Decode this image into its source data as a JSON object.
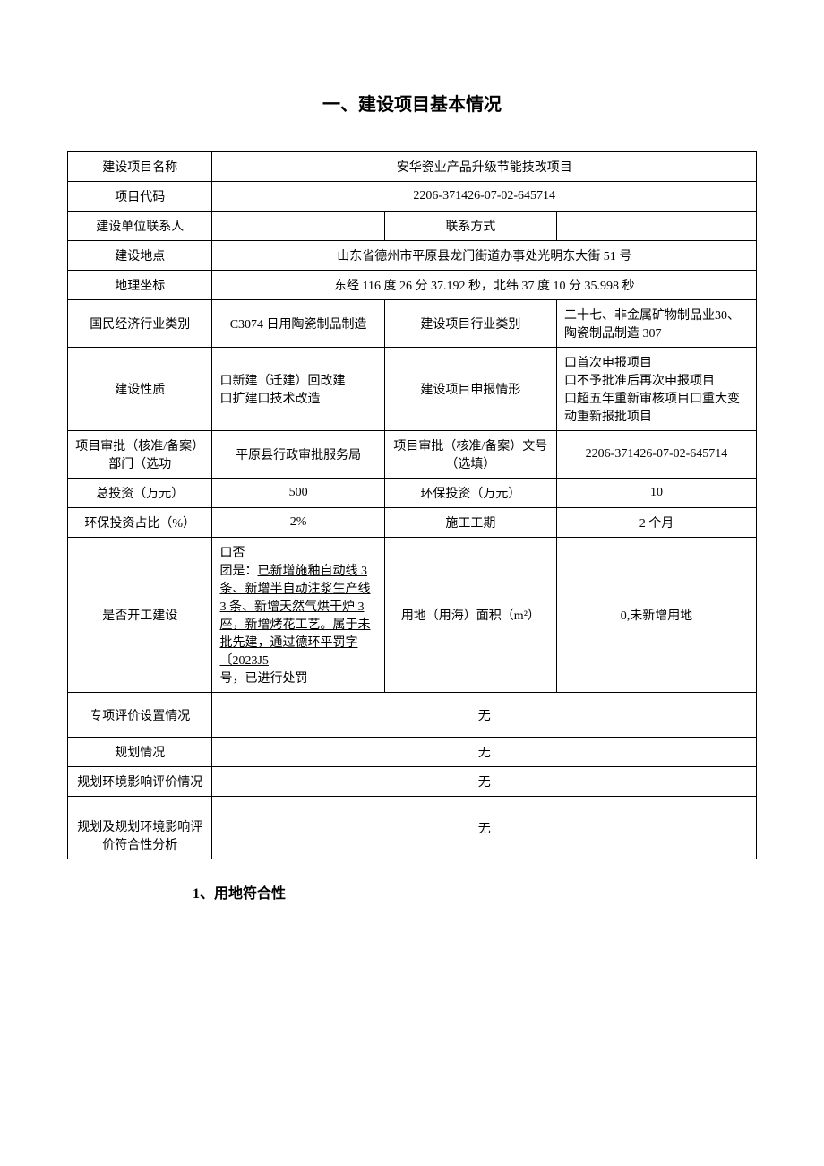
{
  "title": "一、建设项目基本情况",
  "rows": {
    "r1": {
      "label": "建设项目名称",
      "value": "安华瓷业产品升级节能技改项目"
    },
    "r2": {
      "label": "项目代码",
      "value": "2206-371426-07-02-645714"
    },
    "r3": {
      "label1": "建设单位联系人",
      "value1": "",
      "label2": "联系方式",
      "value2": ""
    },
    "r4": {
      "label": "建设地点",
      "value": "山东省德州市平原县龙门街道办事处光明东大街 51 号"
    },
    "r5": {
      "label": "地理坐标",
      "value": "东经 116 度 26 分 37.192 秒，北纬 37 度 10 分 35.998 秒"
    },
    "r6": {
      "label1": "国民经济行业类别",
      "value1": "C3074 日用陶瓷制品制造",
      "label2": "建设项目行业类别",
      "value2": "二十七、非金属矿物制品业30、陶瓷制品制造 307"
    },
    "r7": {
      "label1": "建设性质",
      "value1": "口新建（迁建）回改建\n口扩建口技术改造",
      "label2": "建设项目申报情形",
      "value2": "口首次申报项目\n口不予批准后再次申报项目\n口超五年重新审核项目口重大变动重新报批项目"
    },
    "r8": {
      "label1": "项目审批（核准/备案）部门（选功",
      "value1": "平原县行政审批服务局",
      "label2": "项目审批（核准/备案）文号（选填）",
      "value2": "2206-371426-07-02-645714"
    },
    "r9": {
      "label1": "总投资（万元）",
      "value1": "500",
      "label2": "环保投资（万元）",
      "value2": "10"
    },
    "r10": {
      "label1": "环保投资占比（%）",
      "value1": "2%",
      "label2": "施工工期",
      "value2": "2 个月"
    },
    "r11": {
      "label1": "是否开工建设",
      "value1_prefix": "口否\n团是：",
      "value1_underline": "已新增施釉自动线 3 条、新增半自动注浆生产线 3 条、新增天然气烘干炉 3 座，新增烤花工艺。属于未批先建，通过德环平罚字〔2023J5",
      "value1_suffix": "号，已进行处罚",
      "label2": "用地（用海）面积（m²）",
      "value2": "0,未新增用地"
    },
    "r12": {
      "label": "专项评价设置情况",
      "value": "无"
    },
    "r13": {
      "label": "规划情况",
      "value": "无"
    },
    "r14": {
      "label": "规划环境影响评价情况",
      "value": "无"
    },
    "r15": {
      "label": "规划及规划环境影响评价符合性分析",
      "value": "无"
    }
  },
  "subtitle": "1、用地符合性"
}
